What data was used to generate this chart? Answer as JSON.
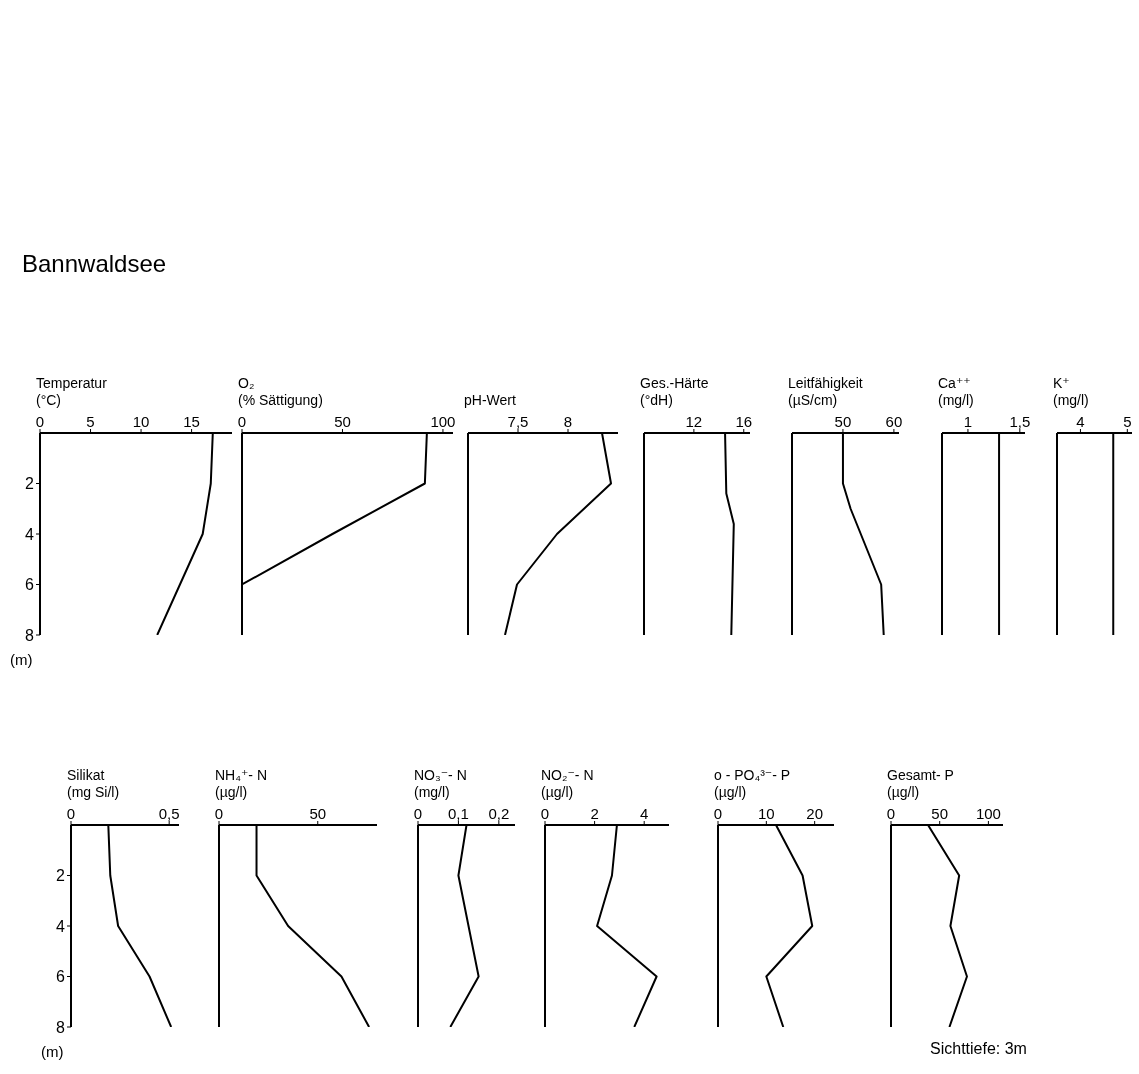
{
  "chart_data": [
    {
      "type": "line",
      "title": "Temperatur",
      "subtitle": "(°C)",
      "ylabel": "(m)",
      "annotations": [
        "Bannwaldsee"
      ],
      "color": "#000000",
      "x": [
        17.1,
        16.9,
        16.1,
        11.6
      ],
      "values": [
        0,
        2,
        4,
        8
      ],
      "xlim": [
        0,
        19
      ],
      "xticks": [
        0,
        5,
        10,
        15
      ],
      "ylim": [
        8,
        0
      ],
      "yticks": [
        2,
        4,
        6,
        8
      ]
    },
    {
      "type": "line",
      "title": "O₂",
      "subtitle": "(% Sättigung)",
      "color": "#000000",
      "x": [
        92,
        91,
        45,
        0,
        0
      ],
      "values": [
        0,
        2,
        4,
        6,
        8
      ],
      "xlim": [
        0,
        105
      ],
      "xticks": [
        0,
        50,
        100
      ],
      "ylim": [
        8,
        0
      ],
      "tick_labels": "x"
    },
    {
      "type": "line",
      "title": "pH-Wert",
      "color": "#000000",
      "x": [
        8.34,
        8.43,
        7.89,
        7.69,
        7.49,
        7.37
      ],
      "values": [
        0,
        2,
        4,
        5,
        6,
        8
      ],
      "xlim": [
        7,
        8.5
      ],
      "xticks": [
        {
          "value": 7.5,
          "label": "7,5"
        },
        8
      ],
      "ylim": [
        8,
        0
      ],
      "tick_labels": "x"
    },
    {
      "type": "line",
      "title": "Ges.-Härte",
      "subtitle": "(°dH)",
      "color": "#000000",
      "x": [
        14.5,
        14.6,
        15.2,
        15
      ],
      "values": [
        0,
        2.4,
        3.6,
        8
      ],
      "xlim": [
        8,
        16.5
      ],
      "xticks": [
        12,
        16
      ],
      "ylim": [
        8,
        0
      ],
      "tick_labels": "x"
    },
    {
      "type": "line",
      "title": "Leitfähigkeit",
      "subtitle": "(µS/cm)",
      "color": "#000000",
      "x": [
        50,
        50,
        51.5,
        57.5,
        58
      ],
      "values": [
        0,
        2,
        3,
        6,
        8
      ],
      "xlim": [
        40,
        61
      ],
      "xticks": [
        50,
        60
      ],
      "ylim": [
        8,
        0
      ],
      "tick_labels": "x"
    },
    {
      "type": "line",
      "title": "Ca⁺⁺",
      "subtitle": "(mg/l)",
      "color": "#000000",
      "x": [
        1.3,
        1.3
      ],
      "values": [
        0,
        8
      ],
      "xlim": [
        0.75,
        1.55
      ],
      "xticks": [
        1,
        {
          "value": 1.5,
          "label": "1,5"
        }
      ],
      "ylim": [
        8,
        0
      ],
      "tick_labels": "x"
    },
    {
      "type": "line",
      "title": "K⁺",
      "subtitle": "(mg/l)",
      "color": "#000000",
      "x": [
        4.7,
        4.7
      ],
      "values": [
        0,
        8
      ],
      "xlim": [
        3.5,
        5.1
      ],
      "xticks": [
        4,
        5
      ],
      "ylim": [
        8,
        0
      ],
      "tick_labels": "x"
    },
    {
      "type": "line",
      "title": "Silikat",
      "subtitle": "(mg Si/l)",
      "ylabel": "(m)",
      "color": "#000000",
      "x": [
        0.19,
        0.2,
        0.24,
        0.4,
        0.51
      ],
      "values": [
        0,
        2,
        4,
        6,
        8
      ],
      "xlim": [
        0,
        0.55
      ],
      "xticks": [
        0,
        {
          "value": 0.5,
          "label": "0,5"
        }
      ],
      "ylim": [
        8,
        0
      ],
      "yticks": [
        2,
        4,
        6,
        8
      ]
    },
    {
      "type": "line",
      "title": "NH₄⁺- N",
      "subtitle": "(µg/l)",
      "color": "#000000",
      "x": [
        19,
        19,
        35,
        62,
        76
      ],
      "values": [
        0,
        2,
        4,
        6,
        8
      ],
      "xlim": [
        0,
        80
      ],
      "xticks": [
        0,
        50
      ],
      "ylim": [
        8,
        0
      ],
      "tick_labels": "x"
    },
    {
      "type": "line",
      "title": "NO₃⁻- N",
      "subtitle": "(mg/l)",
      "color": "#000000",
      "x": [
        0.12,
        0.1,
        0.15,
        0.08
      ],
      "values": [
        0,
        2,
        6,
        8
      ],
      "xlim": [
        0,
        0.24
      ],
      "xticks": [
        0,
        {
          "value": 0.1,
          "label": "0,1"
        },
        {
          "value": 0.2,
          "label": "0,2"
        }
      ],
      "ylim": [
        8,
        0
      ],
      "tick_labels": "x"
    },
    {
      "type": "line",
      "title": "NO₂⁻- N",
      "subtitle": "(µg/l)",
      "color": "#000000",
      "x": [
        2.9,
        2.7,
        2.1,
        4.5,
        3.6
      ],
      "values": [
        0,
        2,
        4,
        6,
        8
      ],
      "xlim": [
        0,
        5
      ],
      "xticks": [
        0,
        2,
        4
      ],
      "ylim": [
        8,
        0
      ],
      "tick_labels": "x"
    },
    {
      "type": "line",
      "title": "o - PO₄³⁻- P",
      "subtitle": "(µg/l)",
      "color": "#000000",
      "x": [
        12,
        17.5,
        19.5,
        10,
        13.5
      ],
      "values": [
        0,
        2,
        4,
        6,
        8
      ],
      "xlim": [
        0,
        24
      ],
      "xticks": [
        0,
        10,
        20
      ],
      "ylim": [
        8,
        0
      ],
      "tick_labels": "x"
    },
    {
      "type": "line",
      "title": "Gesamt- P",
      "subtitle": "(µg/l)",
      "annotations": [
        "Sichttiefe: 3m"
      ],
      "color": "#000000",
      "x": [
        38,
        70,
        61,
        78,
        60
      ],
      "values": [
        0,
        2,
        4,
        6,
        8
      ],
      "xlim": [
        0,
        115
      ],
      "xticks": [
        0,
        50,
        100
      ],
      "ylim": [
        8,
        0
      ],
      "tick_labels": "x"
    }
  ]
}
